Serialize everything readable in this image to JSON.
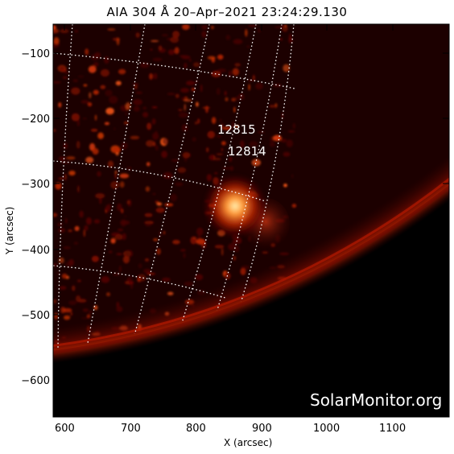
{
  "image": {
    "title": "AIA 304 Å 20–Apr–2021 23:24:29.130",
    "watermark": "SolarMonitor.org",
    "active_regions": [
      "12815",
      "12814"
    ],
    "xlabel": "X (arcsec)",
    "ylabel": "Y (arcsec)",
    "x_ticks": [
      "600",
      "700",
      "800",
      "900",
      "1000",
      "1100"
    ],
    "y_ticks": [
      "−100",
      "−200",
      "−300",
      "−400",
      "−500",
      "−600"
    ],
    "colors": {
      "background": "#000000",
      "sun_base": "#2a0000",
      "plasma": "#ff4a14",
      "bright": "#ffd07a",
      "grid": "#ffffff"
    }
  }
}
